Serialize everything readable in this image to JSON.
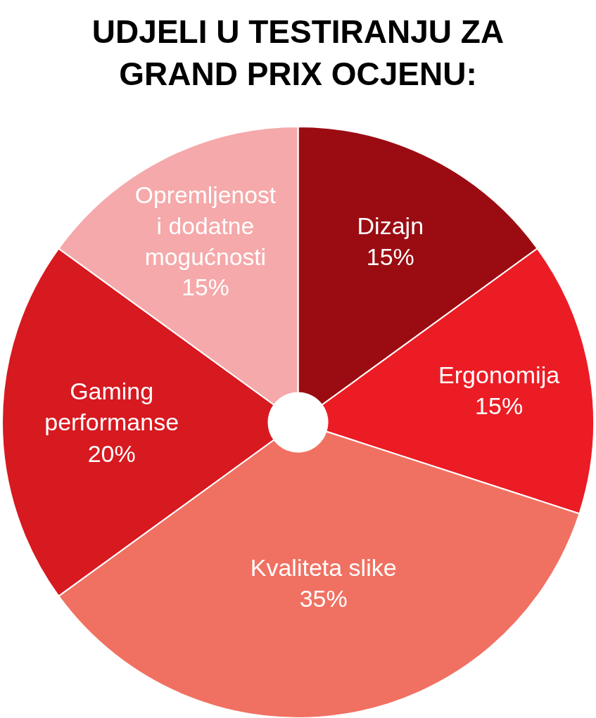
{
  "chart_data": {
    "type": "pie",
    "title": "UDJELI U TESTIRANJU ZA\nGRAND PRIX OCJENU:",
    "categories": [
      "Dizajn",
      "Ergonomija",
      "Kvaliteta slike",
      "Gaming\nperformanse",
      "Opremljenost\ni dodatne\nmogućnosti"
    ],
    "values": [
      15,
      15,
      35,
      20,
      15
    ],
    "value_labels": [
      "15%",
      "15%",
      "35%",
      "20%",
      "15%"
    ],
    "colors": [
      "#9b0c12",
      "#ec1c24",
      "#f07162",
      "#d71920",
      "#f5a9aa"
    ],
    "legend": false
  }
}
